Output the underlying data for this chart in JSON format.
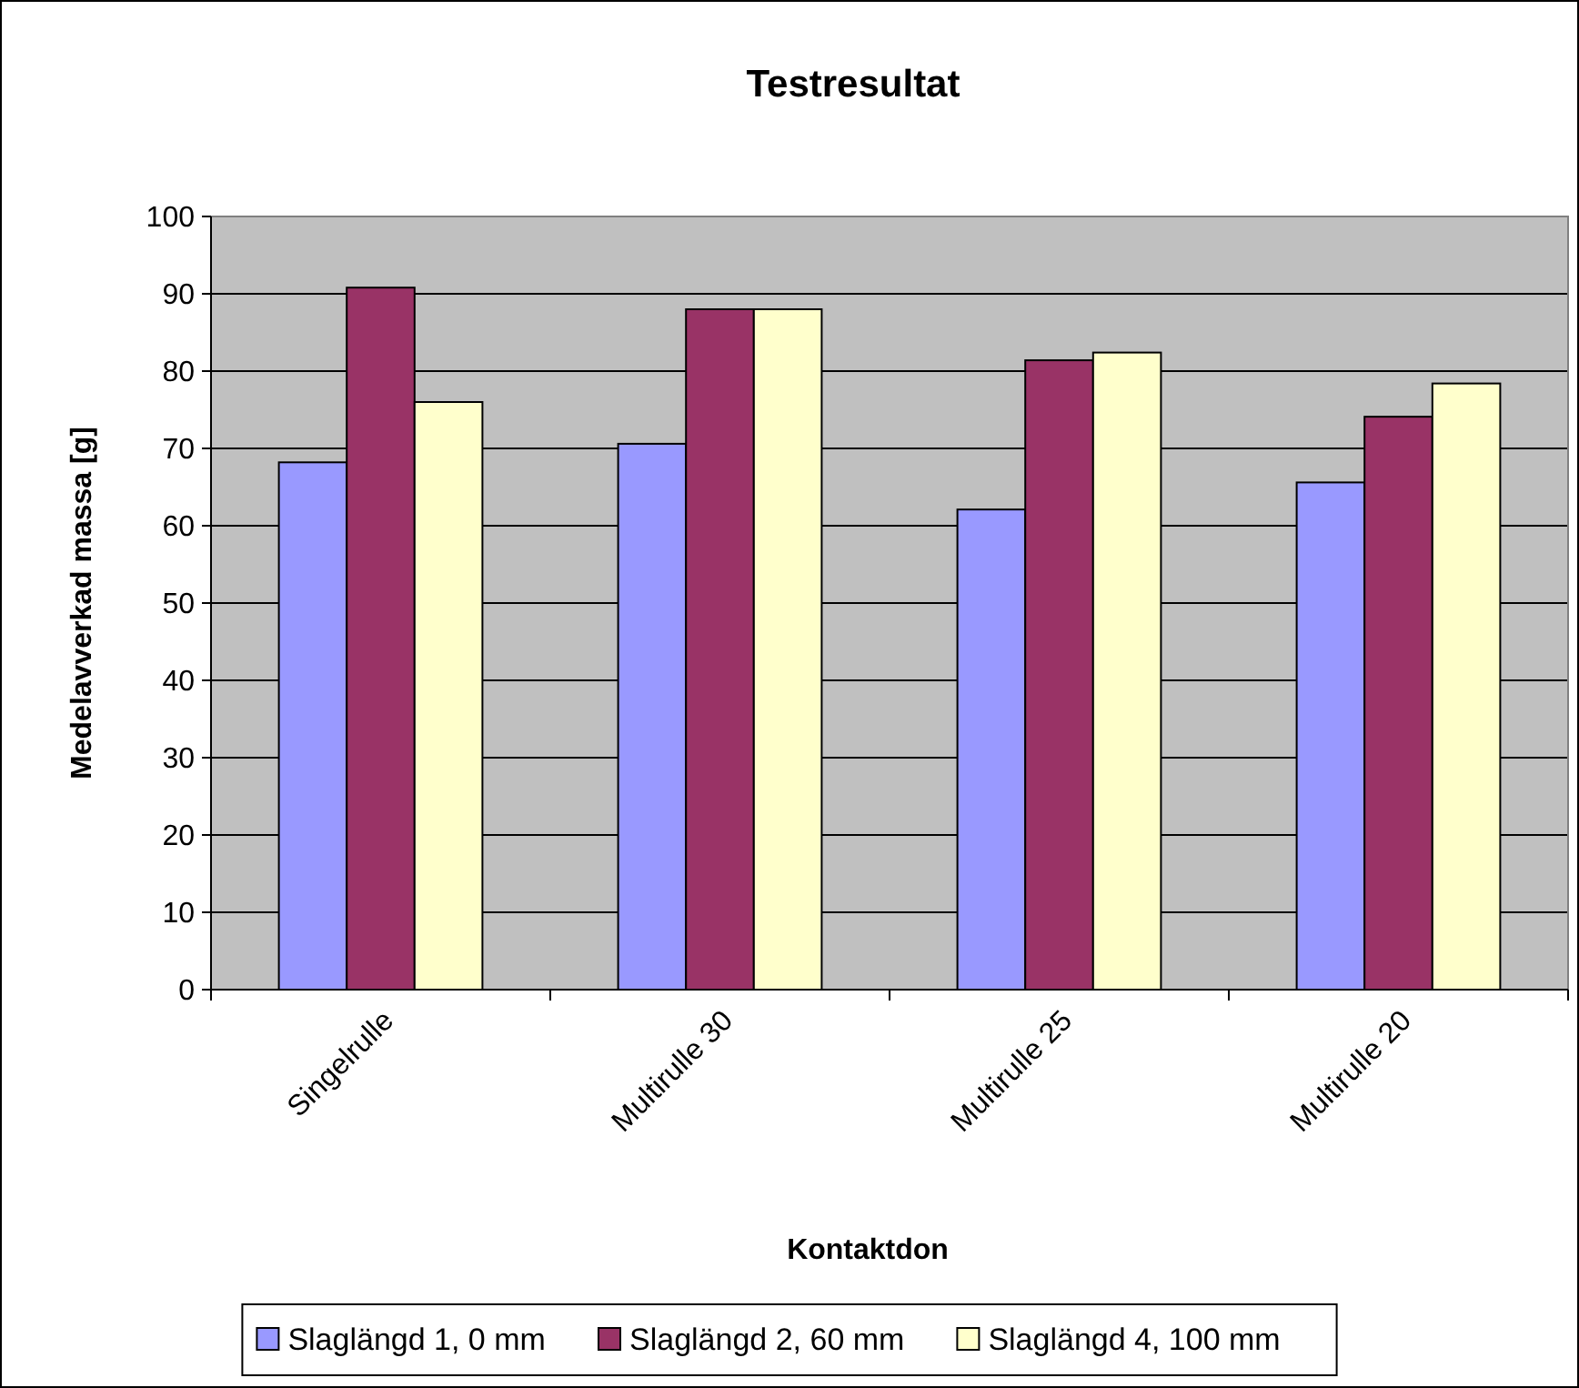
{
  "chart_data": {
    "type": "bar",
    "title": "Testresultat",
    "xlabel": "Kontaktdon",
    "ylabel": "Medelavverkad massa [g]",
    "categories": [
      "Singelrulle",
      "Multirulle 30",
      "Multirulle 25",
      "Multirulle 20"
    ],
    "series": [
      {
        "name": "Slaglängd 1, 0 mm",
        "color": "#9999ff",
        "values": [
          68.2,
          70.6,
          62.1,
          65.6
        ]
      },
      {
        "name": "Slaglängd 2, 60 mm",
        "color": "#993366",
        "values": [
          90.8,
          88,
          81.4,
          74.1
        ]
      },
      {
        "name": "Slaglängd 4, 100 mm",
        "color": "#ffffcc",
        "values": [
          76,
          88,
          82.4,
          78.4
        ]
      }
    ],
    "ylim": [
      0,
      100
    ],
    "yticks": [
      0,
      10,
      20,
      30,
      40,
      50,
      60,
      70,
      80,
      90,
      100
    ],
    "grid": "y",
    "legend": "bottom"
  }
}
